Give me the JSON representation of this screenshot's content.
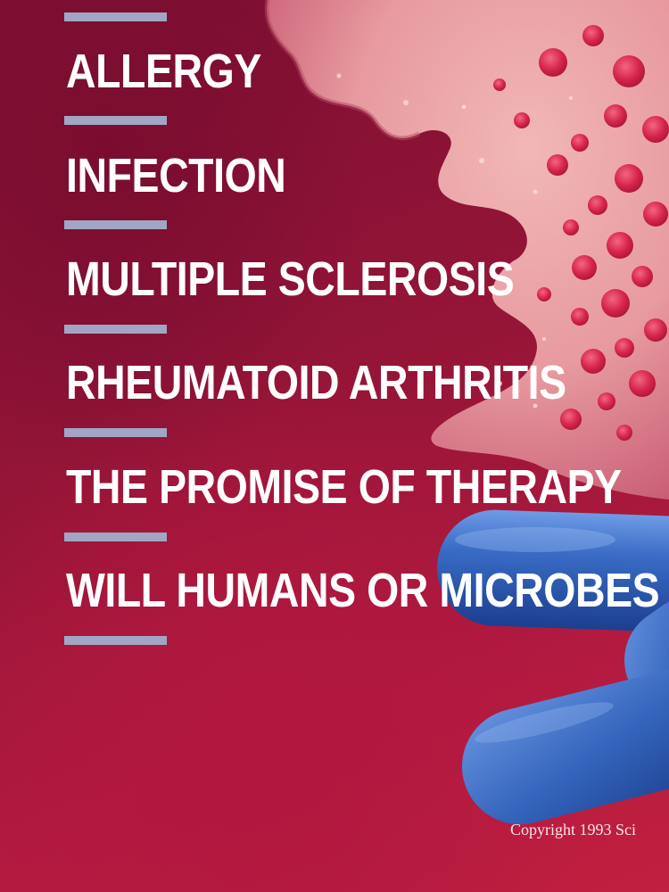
{
  "topics": [
    "ALLERGY",
    "INFECTION",
    "MULTIPLE SCLEROSIS",
    "RHEUMATOID ARTHRITIS",
    "THE PROMISE OF THERAPY",
    "WILL HUMANS OR MICROBES"
  ],
  "copyright": "Copyright 1993 Sci",
  "colors": {
    "background": "#951537",
    "divider": "#a1a6c4",
    "text": "#ffffff",
    "cell_pink": "#e8a0a6",
    "granule": "#d6244c",
    "bacteria_blue": "#2f5fb8"
  }
}
